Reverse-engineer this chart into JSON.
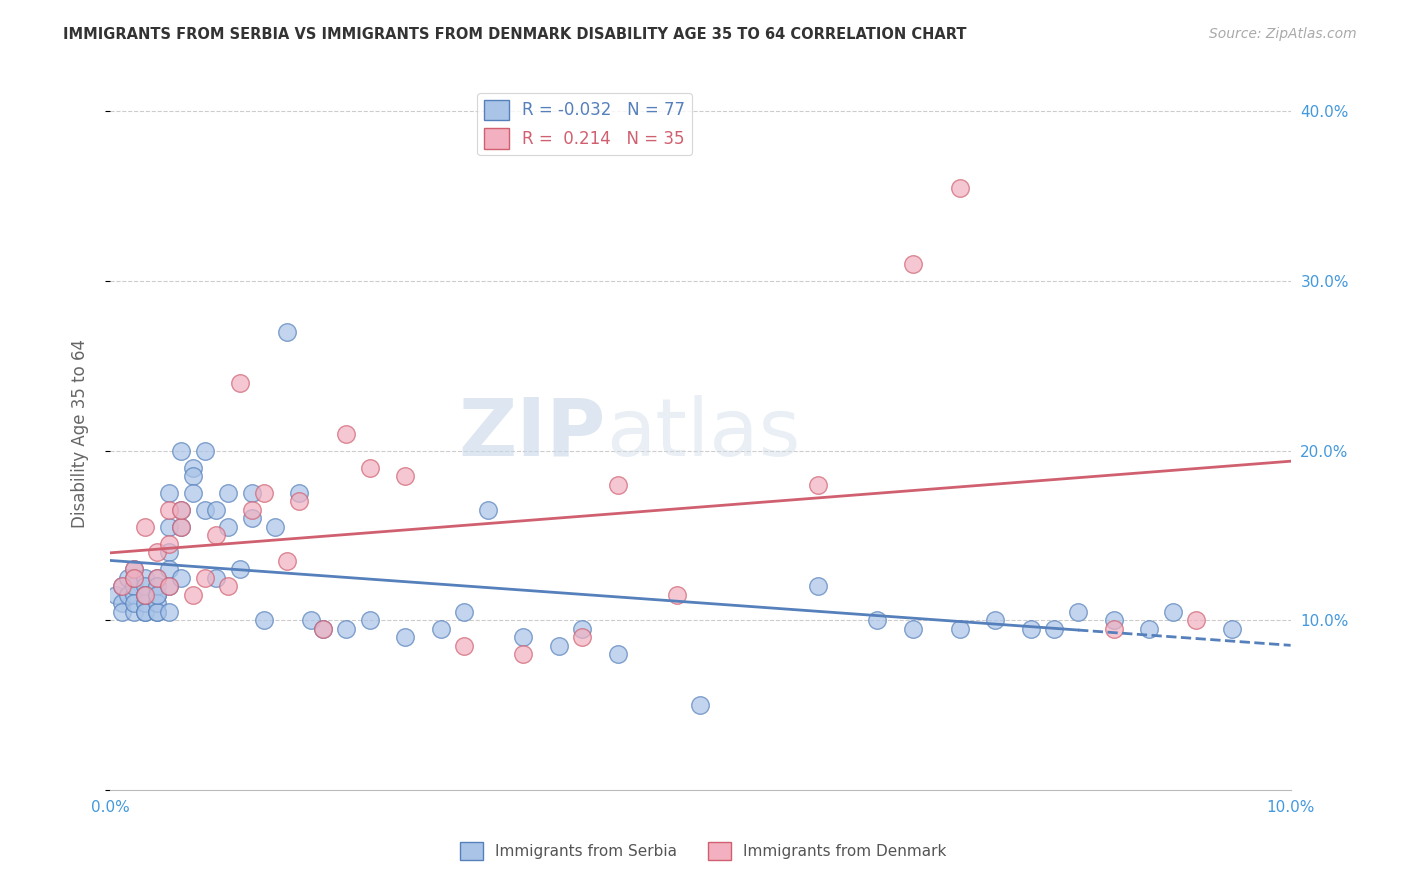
{
  "title": "IMMIGRANTS FROM SERBIA VS IMMIGRANTS FROM DENMARK DISABILITY AGE 35 TO 64 CORRELATION CHART",
  "source": "Source: ZipAtlas.com",
  "ylabel": "Disability Age 35 to 64",
  "xlim": [
    0.0,
    0.1
  ],
  "ylim": [
    0.0,
    0.42
  ],
  "serbia_color": "#aac4e8",
  "denmark_color": "#f2b0c0",
  "serbia_edge_color": "#5580bb",
  "denmark_edge_color": "#d06070",
  "serbia_R": -0.032,
  "serbia_N": 77,
  "denmark_R": 0.214,
  "denmark_N": 35,
  "serbia_x": [
    0.0005,
    0.001,
    0.001,
    0.001,
    0.0015,
    0.0015,
    0.002,
    0.002,
    0.002,
    0.002,
    0.002,
    0.002,
    0.003,
    0.003,
    0.003,
    0.003,
    0.003,
    0.003,
    0.003,
    0.004,
    0.004,
    0.004,
    0.004,
    0.004,
    0.004,
    0.004,
    0.005,
    0.005,
    0.005,
    0.005,
    0.005,
    0.005,
    0.006,
    0.006,
    0.006,
    0.006,
    0.007,
    0.007,
    0.007,
    0.008,
    0.008,
    0.009,
    0.009,
    0.01,
    0.01,
    0.011,
    0.012,
    0.012,
    0.013,
    0.014,
    0.015,
    0.016,
    0.017,
    0.018,
    0.02,
    0.022,
    0.025,
    0.028,
    0.03,
    0.032,
    0.035,
    0.038,
    0.04,
    0.043,
    0.06,
    0.065,
    0.068,
    0.072,
    0.075,
    0.078,
    0.08,
    0.082,
    0.085,
    0.088,
    0.09,
    0.095,
    0.05
  ],
  "serbia_y": [
    0.115,
    0.11,
    0.12,
    0.105,
    0.125,
    0.115,
    0.13,
    0.115,
    0.105,
    0.12,
    0.11,
    0.125,
    0.115,
    0.125,
    0.105,
    0.12,
    0.11,
    0.105,
    0.115,
    0.115,
    0.125,
    0.105,
    0.12,
    0.11,
    0.105,
    0.115,
    0.14,
    0.12,
    0.175,
    0.155,
    0.13,
    0.105,
    0.155,
    0.165,
    0.2,
    0.125,
    0.19,
    0.185,
    0.175,
    0.165,
    0.2,
    0.125,
    0.165,
    0.155,
    0.175,
    0.13,
    0.16,
    0.175,
    0.1,
    0.155,
    0.27,
    0.175,
    0.1,
    0.095,
    0.095,
    0.1,
    0.09,
    0.095,
    0.105,
    0.165,
    0.09,
    0.085,
    0.095,
    0.08,
    0.12,
    0.1,
    0.095,
    0.095,
    0.1,
    0.095,
    0.095,
    0.105,
    0.1,
    0.095,
    0.105,
    0.095,
    0.05
  ],
  "denmark_x": [
    0.001,
    0.002,
    0.002,
    0.003,
    0.003,
    0.004,
    0.004,
    0.005,
    0.005,
    0.005,
    0.006,
    0.006,
    0.007,
    0.008,
    0.009,
    0.01,
    0.011,
    0.012,
    0.013,
    0.015,
    0.016,
    0.018,
    0.02,
    0.022,
    0.025,
    0.03,
    0.035,
    0.04,
    0.043,
    0.048,
    0.06,
    0.068,
    0.072,
    0.085,
    0.092
  ],
  "denmark_y": [
    0.12,
    0.13,
    0.125,
    0.115,
    0.155,
    0.14,
    0.125,
    0.165,
    0.145,
    0.12,
    0.155,
    0.165,
    0.115,
    0.125,
    0.15,
    0.12,
    0.24,
    0.165,
    0.175,
    0.135,
    0.17,
    0.095,
    0.21,
    0.19,
    0.185,
    0.085,
    0.08,
    0.09,
    0.18,
    0.115,
    0.18,
    0.31,
    0.355,
    0.095,
    0.1
  ],
  "watermark_zip": "ZIP",
  "watermark_atlas": "atlas",
  "grid_color": "#cccccc",
  "title_color": "#333333",
  "axis_label_color": "#666666",
  "tick_label_color": "#4499dd"
}
